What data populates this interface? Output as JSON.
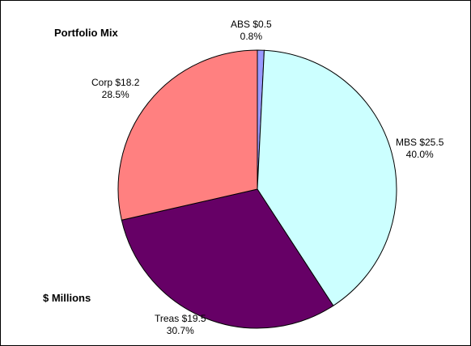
{
  "chart_data": {
    "type": "pie",
    "title": "Portfolio Mix",
    "units_label": "$ Millions",
    "slices": [
      {
        "name": "ABS",
        "value": 0.5,
        "percent": "0.8%",
        "label": "ABS $0.5",
        "color": "#9999ff"
      },
      {
        "name": "MBS",
        "value": 25.5,
        "percent": "40.0%",
        "label": "MBS $25.5",
        "color": "#ccffff"
      },
      {
        "name": "Treas",
        "value": 19.5,
        "percent": "30.7%",
        "label": "Treas $19.5",
        "color": "#660066"
      },
      {
        "name": "Corp",
        "value": 18.2,
        "percent": "28.5%",
        "label": "Corp $18.2",
        "color": "#ff8080"
      }
    ]
  }
}
